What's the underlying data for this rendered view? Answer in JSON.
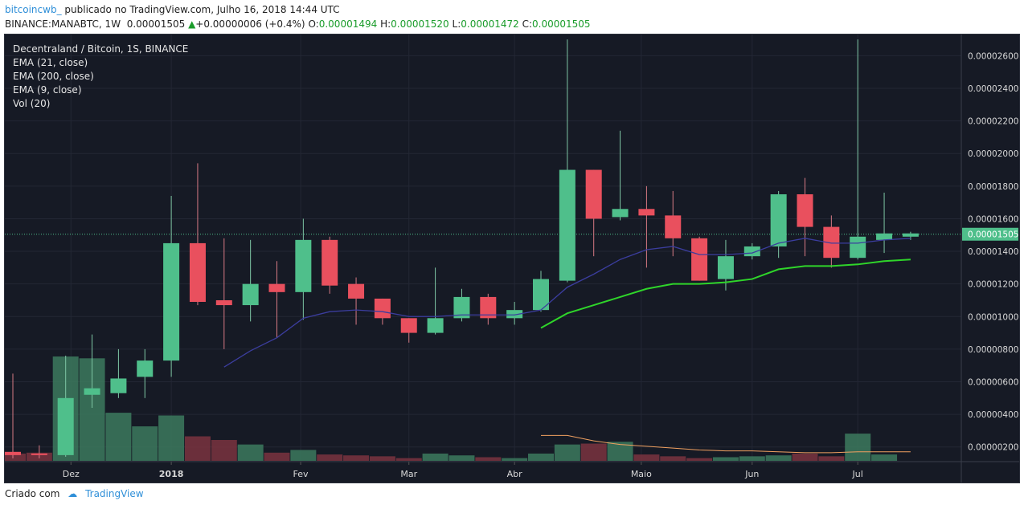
{
  "header": {
    "author": "bitcoincwb_",
    "published_text": "publicado no TradingView.com, Julho 16, 2018 14:44 UTC",
    "symbol": "BINANCE:MANABTC, 1W",
    "last": "0.00001505",
    "change": "+0.00000006 (+0.4%)",
    "open": "0.00001494",
    "high": "0.00001520",
    "low": "0.00001472",
    "close": "0.00001505",
    "o_label": "O:",
    "h_label": "H:",
    "l_label": "L:",
    "c_label": "C:"
  },
  "legend": [
    "Decentraland / Bitcoin, 1S, BINANCE",
    "EMA (21, close)",
    "EMA (200, close)",
    "EMA (9, close)",
    "Vol (20)"
  ],
  "footer": {
    "created": "Criado com",
    "brand": "TradingView"
  },
  "colors": {
    "up": "#4fbf8b",
    "down": "#e9505e",
    "bg": "#161a25",
    "ema_short": "#3b3d9e",
    "ema_long": "#2fd52a",
    "vol_ma": "#f0a060",
    "price_line": "#4fbf8b"
  },
  "chart_data": {
    "type": "candlestick",
    "price_ticks": [
      "0.00002600",
      "0.00002400",
      "0.00002200",
      "0.00002000",
      "0.00001800",
      "0.00001600",
      "0.00001400",
      "0.00001200",
      "0.00001000",
      "0.00000800",
      "0.00000600",
      "0.00000400",
      "0.00000200"
    ],
    "ylim": [
      1.1e-06,
      2.73e-05
    ],
    "last_price_label": "0.00001505",
    "last_price": 1.505e-05,
    "x_labels": [
      {
        "i": 2.2,
        "label": "Dez"
      },
      {
        "i": 6.0,
        "label": "2018"
      },
      {
        "i": 10.9,
        "label": "Fev"
      },
      {
        "i": 15.0,
        "label": "Mar"
      },
      {
        "i": 19.0,
        "label": "Abr"
      },
      {
        "i": 23.8,
        "label": "Maio"
      },
      {
        "i": 28.0,
        "label": "Jun"
      },
      {
        "i": 32.0,
        "label": "Jul"
      }
    ],
    "candles": [
      {
        "o": 1.7e-06,
        "h": 6.5e-06,
        "l": 1.3e-06,
        "c": 1.5e-06
      },
      {
        "o": 1.6e-06,
        "h": 2.1e-06,
        "l": 1.3e-06,
        "c": 1.5e-06
      },
      {
        "o": 1.5e-06,
        "h": 7.6e-06,
        "l": 1.4e-06,
        "c": 5e-06
      },
      {
        "o": 5.2e-06,
        "h": 8.9e-06,
        "l": 4.4e-06,
        "c": 5.6e-06
      },
      {
        "o": 5.3e-06,
        "h": 8e-06,
        "l": 5e-06,
        "c": 6.2e-06
      },
      {
        "o": 6.3e-06,
        "h": 8e-06,
        "l": 5e-06,
        "c": 7.3e-06
      },
      {
        "o": 7.3e-06,
        "h": 1.74e-05,
        "l": 6.3e-06,
        "c": 1.45e-05
      },
      {
        "o": 1.45e-05,
        "h": 1.94e-05,
        "l": 1.07e-05,
        "c": 1.09e-05
      },
      {
        "o": 1.1e-05,
        "h": 1.48e-05,
        "l": 8e-06,
        "c": 1.07e-05
      },
      {
        "o": 1.07e-05,
        "h": 1.47e-05,
        "l": 9.7e-06,
        "c": 1.2e-05
      },
      {
        "o": 1.2e-05,
        "h": 1.34e-05,
        "l": 8.7e-06,
        "c": 1.15e-05
      },
      {
        "o": 1.15e-05,
        "h": 1.6e-05,
        "l": 9.8e-06,
        "c": 1.47e-05
      },
      {
        "o": 1.47e-05,
        "h": 1.49e-05,
        "l": 1.14e-05,
        "c": 1.19e-05
      },
      {
        "o": 1.2e-05,
        "h": 1.24e-05,
        "l": 9.5e-06,
        "c": 1.11e-05
      },
      {
        "o": 1.11e-05,
        "h": 1.11e-05,
        "l": 9.5e-06,
        "c": 9.9e-06
      },
      {
        "o": 9.9e-06,
        "h": 9.9e-06,
        "l": 8.4e-06,
        "c": 9e-06
      },
      {
        "o": 9e-06,
        "h": 1.3e-05,
        "l": 8.9e-06,
        "c": 9.9e-06
      },
      {
        "o": 9.9e-06,
        "h": 1.17e-05,
        "l": 9.7e-06,
        "c": 1.12e-05
      },
      {
        "o": 1.12e-05,
        "h": 1.14e-05,
        "l": 9.5e-06,
        "c": 9.9e-06
      },
      {
        "o": 9.9e-06,
        "h": 1.09e-05,
        "l": 9.5e-06,
        "c": 1.04e-05
      },
      {
        "o": 1.04e-05,
        "h": 1.28e-05,
        "l": 1.03e-05,
        "c": 1.23e-05
      },
      {
        "o": 1.22e-05,
        "h": 2.7e-05,
        "l": 1.21e-05,
        "c": 1.9e-05
      },
      {
        "o": 1.9e-05,
        "h": 1.9e-05,
        "l": 1.37e-05,
        "c": 1.6e-05
      },
      {
        "o": 1.61e-05,
        "h": 2.14e-05,
        "l": 1.59e-05,
        "c": 1.66e-05
      },
      {
        "o": 1.66e-05,
        "h": 1.8e-05,
        "l": 1.3e-05,
        "c": 1.62e-05
      },
      {
        "o": 1.62e-05,
        "h": 1.77e-05,
        "l": 1.37e-05,
        "c": 1.48e-05
      },
      {
        "o": 1.48e-05,
        "h": 1.49e-05,
        "l": 1.22e-05,
        "c": 1.22e-05
      },
      {
        "o": 1.23e-05,
        "h": 1.47e-05,
        "l": 1.16e-05,
        "c": 1.37e-05
      },
      {
        "o": 1.37e-05,
        "h": 1.45e-05,
        "l": 1.35e-05,
        "c": 1.43e-05
      },
      {
        "o": 1.43e-05,
        "h": 1.77e-05,
        "l": 1.36e-05,
        "c": 1.75e-05
      },
      {
        "o": 1.75e-05,
        "h": 1.85e-05,
        "l": 1.37e-05,
        "c": 1.55e-05
      },
      {
        "o": 1.55e-05,
        "h": 1.62e-05,
        "l": 1.3e-05,
        "c": 1.36e-05
      },
      {
        "o": 1.36e-05,
        "h": 2.7e-05,
        "l": 1.35e-05,
        "c": 1.49e-05
      },
      {
        "o": 1.47e-05,
        "h": 1.76e-05,
        "l": 1.39e-05,
        "c": 1.51e-05
      },
      {
        "o": 1.49e-05,
        "h": 1.52e-05,
        "l": 1.47e-05,
        "c": 1.51e-05
      }
    ],
    "volumes": [
      8,
      9,
      115,
      113,
      53,
      38,
      50,
      27,
      23,
      18,
      9,
      12,
      7,
      6,
      5,
      3,
      8,
      6,
      4,
      3,
      8,
      18,
      19,
      21,
      7,
      5,
      3,
      4,
      5,
      6,
      8,
      5,
      30,
      7,
      0
    ],
    "ema_short": [
      null,
      null,
      null,
      null,
      null,
      null,
      null,
      null,
      6.9e-06,
      7.9e-06,
      8.7e-06,
      9.9e-06,
      1.03e-05,
      1.04e-05,
      1.03e-05,
      1e-05,
      1e-05,
      1.01e-05,
      1.01e-05,
      1.01e-05,
      1.04e-05,
      1.18e-05,
      1.26e-05,
      1.35e-05,
      1.41e-05,
      1.43e-05,
      1.38e-05,
      1.38e-05,
      1.39e-05,
      1.45e-05,
      1.48e-05,
      1.45e-05,
      1.45e-05,
      1.47e-05,
      1.48e-05
    ],
    "ema_long": [
      null,
      null,
      null,
      null,
      null,
      null,
      null,
      null,
      null,
      null,
      null,
      null,
      null,
      null,
      null,
      null,
      null,
      null,
      null,
      null,
      9.3e-06,
      1.02e-05,
      1.07e-05,
      1.12e-05,
      1.17e-05,
      1.2e-05,
      1.2e-05,
      1.21e-05,
      1.23e-05,
      1.29e-05,
      1.31e-05,
      1.31e-05,
      1.32e-05,
      1.34e-05,
      1.35e-05
    ],
    "vol_ma": [
      null,
      null,
      null,
      null,
      null,
      null,
      null,
      null,
      null,
      null,
      null,
      null,
      null,
      null,
      null,
      null,
      null,
      null,
      null,
      null,
      28,
      28,
      22,
      18,
      16,
      14,
      12,
      11,
      11,
      10,
      9,
      9,
      10,
      10,
      10
    ]
  }
}
